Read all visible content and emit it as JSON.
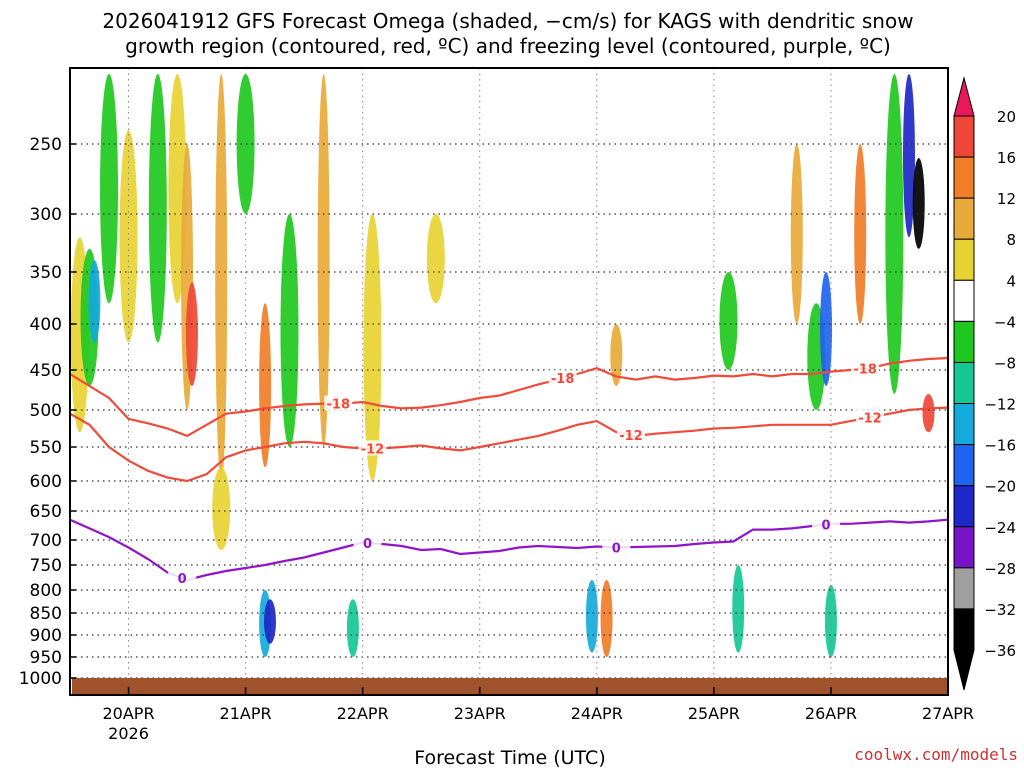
{
  "chart_data": {
    "type": "heatmap",
    "title_line1": "2026041912 GFS Forecast Omega (shaded, −cm/s) for KAGS with dendritic snow",
    "title_line2": "growth region (contoured, red, ºC) and freezing level (contoured, purple, ºC)",
    "xlabel": "Forecast Time (UTC)",
    "credit": "coolwx.com/models",
    "x_ticks": [
      {
        "t": 12,
        "label": "20APR",
        "sublabel": "2026"
      },
      {
        "t": 36,
        "label": "21APR"
      },
      {
        "t": 60,
        "label": "22APR"
      },
      {
        "t": 84,
        "label": "23APR"
      },
      {
        "t": 108,
        "label": "24APR"
      },
      {
        "t": 132,
        "label": "25APR"
      },
      {
        "t": 156,
        "label": "26APR"
      },
      {
        "t": 180,
        "label": "27APR"
      }
    ],
    "x_range_hours": [
      0,
      180
    ],
    "y_axis": "pressure_hPa",
    "y_range": [
      1000,
      200
    ],
    "y_ticks": [
      250,
      300,
      350,
      400,
      450,
      500,
      550,
      600,
      650,
      700,
      750,
      800,
      850,
      900,
      950,
      1000
    ],
    "colorbar": {
      "labels": [
        "20",
        "16",
        "12",
        "8",
        "4",
        "−4",
        "−8",
        "−12",
        "−16",
        "−20",
        "−24",
        "−28",
        "−32",
        "−36"
      ],
      "colors": [
        "#e8185a",
        "#f04638",
        "#f07e28",
        "#e8aa3a",
        "#e8d232",
        "#ffffff",
        "#1ec81e",
        "#14c896",
        "#14aadc",
        "#1e64f0",
        "#1e28c8",
        "#7814c8",
        "#a0a0a0",
        "#000000"
      ],
      "top_arrow_color": "#e8185a",
      "bottom_arrow_color": "#000000"
    },
    "contours": [
      {
        "name": "-18",
        "color": "#f04a3a",
        "label": "-18",
        "t": [
          0,
          4,
          8,
          12,
          16,
          20,
          24,
          28,
          32,
          36,
          40,
          44,
          48,
          52,
          56,
          60,
          64,
          68,
          72,
          76,
          80,
          84,
          88,
          92,
          96,
          100,
          104,
          108,
          112,
          116,
          120,
          124,
          128,
          132,
          136,
          140,
          144,
          148,
          152,
          156,
          160,
          164,
          168,
          172,
          176,
          180
        ],
        "p": [
          455,
          470,
          485,
          512,
          518,
          525,
          535,
          520,
          505,
          502,
          498,
          495,
          493,
          492,
          492,
          490,
          495,
          498,
          497,
          494,
          490,
          485,
          482,
          475,
          468,
          462,
          455,
          448,
          458,
          462,
          458,
          462,
          460,
          457,
          458,
          455,
          458,
          455,
          455,
          452,
          450,
          448,
          443,
          440,
          438,
          437
        ]
      },
      {
        "name": "-12",
        "color": "#f04a3a",
        "label": "-12",
        "t": [
          0,
          4,
          8,
          12,
          16,
          20,
          24,
          28,
          32,
          36,
          40,
          44,
          48,
          52,
          56,
          60,
          64,
          68,
          72,
          76,
          80,
          84,
          88,
          92,
          96,
          100,
          104,
          108,
          112,
          116,
          120,
          124,
          128,
          132,
          136,
          140,
          144,
          148,
          152,
          156,
          160,
          164,
          168,
          172,
          176,
          180
        ],
        "p": [
          505,
          520,
          550,
          570,
          585,
          595,
          600,
          590,
          565,
          555,
          550,
          545,
          543,
          545,
          550,
          552,
          552,
          550,
          548,
          552,
          555,
          550,
          545,
          540,
          535,
          528,
          520,
          515,
          530,
          535,
          532,
          530,
          528,
          525,
          524,
          522,
          520,
          520,
          520,
          520,
          515,
          510,
          505,
          500,
          498,
          497
        ]
      },
      {
        "name": "0",
        "color": "#9014c8",
        "label": "0",
        "t": [
          0,
          4,
          8,
          12,
          16,
          20,
          24,
          28,
          32,
          36,
          40,
          44,
          48,
          52,
          56,
          60,
          64,
          68,
          72,
          76,
          80,
          84,
          88,
          92,
          96,
          100,
          104,
          108,
          112,
          116,
          120,
          124,
          128,
          132,
          136,
          140,
          144,
          148,
          152,
          156,
          160,
          164,
          168,
          172,
          176,
          180
        ],
        "p": [
          665,
          680,
          695,
          715,
          738,
          765,
          780,
          770,
          762,
          756,
          750,
          742,
          735,
          725,
          715,
          705,
          708,
          712,
          720,
          718,
          728,
          725,
          722,
          715,
          712,
          714,
          716,
          713,
          715,
          714,
          713,
          712,
          708,
          705,
          703,
          682,
          682,
          680,
          676,
          672,
          672,
          670,
          668,
          670,
          668,
          665
        ]
      }
    ],
    "contour_labels": [
      {
        "contour": "-18",
        "t": 55,
        "text": "-18"
      },
      {
        "contour": "-18",
        "t": 101,
        "text": "-18"
      },
      {
        "contour": "-18",
        "t": 163,
        "text": "-18"
      },
      {
        "contour": "-12",
        "t": 62,
        "text": "-12"
      },
      {
        "contour": "-12",
        "t": 115,
        "text": "-12"
      },
      {
        "contour": "-12",
        "t": 164,
        "text": "-12"
      },
      {
        "contour": "0",
        "t": 23,
        "text": "0"
      },
      {
        "contour": "0",
        "t": 61,
        "text": "0"
      },
      {
        "contour": "0",
        "t": 112,
        "text": "0"
      },
      {
        "contour": "0",
        "t": 155,
        "text": "0"
      }
    ],
    "omega_features": [
      {
        "t": 2,
        "p1": 320,
        "p2": 530,
        "class": "4"
      },
      {
        "t": 4,
        "p1": 330,
        "p2": 470,
        "class": "-8"
      },
      {
        "t": 5,
        "p1": 340,
        "p2": 420,
        "class": "-16"
      },
      {
        "t": 8,
        "p1": 200,
        "p2": 380,
        "class": "-8"
      },
      {
        "t": 12,
        "p1": 240,
        "p2": 420,
        "class": "4"
      },
      {
        "t": 18,
        "p1": 200,
        "p2": 420,
        "class": "-8"
      },
      {
        "t": 22,
        "p1": 200,
        "p2": 380,
        "class": "4"
      },
      {
        "t": 24,
        "p1": 250,
        "p2": 500,
        "class": "8"
      },
      {
        "t": 25,
        "p1": 360,
        "p2": 470,
        "class": "16"
      },
      {
        "t": 31,
        "p1": 200,
        "p2": 600,
        "class": "8"
      },
      {
        "t": 31,
        "p1": 580,
        "p2": 720,
        "class": "4"
      },
      {
        "t": 36,
        "p1": 200,
        "p2": 300,
        "class": "-8"
      },
      {
        "t": 40,
        "p1": 380,
        "p2": 580,
        "class": "12"
      },
      {
        "t": 40,
        "p1": 800,
        "p2": 950,
        "class": "-16"
      },
      {
        "t": 41,
        "p1": 820,
        "p2": 920,
        "class": "-24"
      },
      {
        "t": 45,
        "p1": 300,
        "p2": 550,
        "class": "-8"
      },
      {
        "t": 52,
        "p1": 200,
        "p2": 550,
        "class": "8"
      },
      {
        "t": 58,
        "p1": 820,
        "p2": 950,
        "class": "-12"
      },
      {
        "t": 62,
        "p1": 300,
        "p2": 600,
        "class": "4"
      },
      {
        "t": 75,
        "p1": 300,
        "p2": 380,
        "class": "4"
      },
      {
        "t": 107,
        "p1": 780,
        "p2": 940,
        "class": "-16"
      },
      {
        "t": 110,
        "p1": 780,
        "p2": 950,
        "class": "12"
      },
      {
        "t": 112,
        "p1": 400,
        "p2": 470,
        "class": "8"
      },
      {
        "t": 135,
        "p1": 350,
        "p2": 450,
        "class": "-8"
      },
      {
        "t": 137,
        "p1": 750,
        "p2": 940,
        "class": "-12"
      },
      {
        "t": 149,
        "p1": 250,
        "p2": 400,
        "class": "8"
      },
      {
        "t": 153,
        "p1": 380,
        "p2": 500,
        "class": "-8"
      },
      {
        "t": 155,
        "p1": 350,
        "p2": 470,
        "class": "-20"
      },
      {
        "t": 156,
        "p1": 790,
        "p2": 950,
        "class": "-12"
      },
      {
        "t": 162,
        "p1": 250,
        "p2": 400,
        "class": "12"
      },
      {
        "t": 169,
        "p1": 200,
        "p2": 480,
        "class": "-8"
      },
      {
        "t": 172,
        "p1": 200,
        "p2": 320,
        "class": "-24"
      },
      {
        "t": 174,
        "p1": 260,
        "p2": 330,
        "class": "-36"
      },
      {
        "t": 176,
        "p1": 480,
        "p2": 530,
        "class": "16"
      }
    ]
  }
}
